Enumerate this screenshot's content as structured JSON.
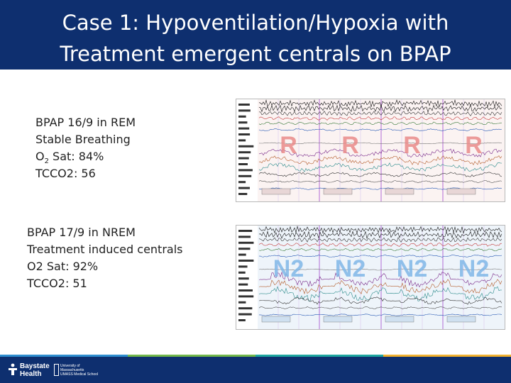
{
  "slide": {
    "title_line1": "Case 1: Hypoventilation/Hypoxia with",
    "title_line2": "Treatment emergent centrals on BPAP"
  },
  "block_rem": {
    "line1": "BPAP 16/9  in REM",
    "line2": "Stable Breathing",
    "o2_prefix": "O",
    "o2_sub": "2",
    "o2_value": " Sat: 84%",
    "line4": "TCCO2: 56"
  },
  "block_nrem": {
    "line1": "BPAP 17/9 in NREM",
    "line2": "Treatment induced centrals",
    "line3": "O2 Sat: 92%",
    "line4": "TCCO2: 51"
  },
  "panel_rem": {
    "stage_labels": [
      "R",
      "R",
      "R",
      "R"
    ],
    "stage_color": "#e98a8a",
    "background": "#fbf3f2"
  },
  "panel_nrem": {
    "stage_labels": [
      "N2",
      "N2",
      "N2",
      "N2"
    ],
    "stage_color": "#7fb6e6",
    "background": "#eef4fa"
  },
  "footer": {
    "org_line1": "Baystate",
    "org_line2": "Health",
    "univ_line1": "University of",
    "univ_line2": "Massachusetts",
    "univ_line3": "UMASS  Medical School",
    "band_color": "#0e2f6f"
  }
}
